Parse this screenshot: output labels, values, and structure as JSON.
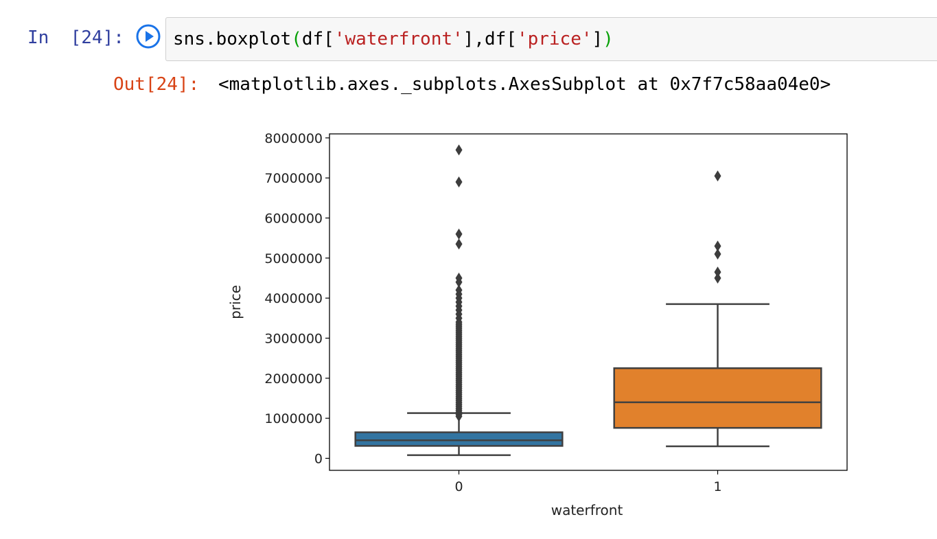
{
  "cell": {
    "in_prompt": "In  [24]:",
    "code": {
      "call": "sns.boxplot",
      "open": "(",
      "arg1_pre": "df[",
      "arg1_str": "'waterfront'",
      "arg1_post": "],df[",
      "arg2_str": "'price'",
      "arg2_post": "]",
      "close": ")"
    },
    "out_prompt": "Out[24]:",
    "out_text": "<matplotlib.axes._subplots.AxesSubplot at 0x7f7c58aa04e0>"
  },
  "chart_data": {
    "type": "box",
    "title": "",
    "xlabel": "waterfront",
    "ylabel": "price",
    "ylim": [
      -300000,
      8100000
    ],
    "yticks": [
      0,
      1000000,
      2000000,
      3000000,
      4000000,
      5000000,
      6000000,
      7000000,
      8000000
    ],
    "ytick_labels": [
      "0",
      "1000000",
      "2000000",
      "3000000",
      "4000000",
      "5000000",
      "6000000",
      "7000000",
      "8000000"
    ],
    "grid": false,
    "categories": [
      "0",
      "1"
    ],
    "boxes": [
      {
        "category": "0",
        "color": "#3274a1",
        "whisker_low": 80000,
        "q1": 310000,
        "median": 450000,
        "q3": 650000,
        "whisker_high": 1130000,
        "outliers": [
          1050000,
          1100000,
          1150000,
          1200000,
          1250000,
          1300000,
          1350000,
          1400000,
          1450000,
          1500000,
          1550000,
          1600000,
          1650000,
          1700000,
          1750000,
          1800000,
          1850000,
          1900000,
          1950000,
          2000000,
          2050000,
          2100000,
          2150000,
          2200000,
          2250000,
          2300000,
          2350000,
          2400000,
          2450000,
          2500000,
          2550000,
          2600000,
          2650000,
          2700000,
          2750000,
          2800000,
          2850000,
          2900000,
          2950000,
          3000000,
          3050000,
          3100000,
          3150000,
          3200000,
          3250000,
          3300000,
          3350000,
          3400000,
          3500000,
          3600000,
          3700000,
          3800000,
          3900000,
          4000000,
          4100000,
          4200000,
          4400000,
          4500000,
          5350000,
          5600000,
          6900000,
          7700000
        ]
      },
      {
        "category": "1",
        "color": "#e1812c",
        "whisker_low": 300000,
        "q1": 760000,
        "median": 1400000,
        "q3": 2250000,
        "whisker_high": 3850000,
        "outliers": [
          4500000,
          4650000,
          5100000,
          5300000,
          7050000
        ]
      }
    ]
  }
}
